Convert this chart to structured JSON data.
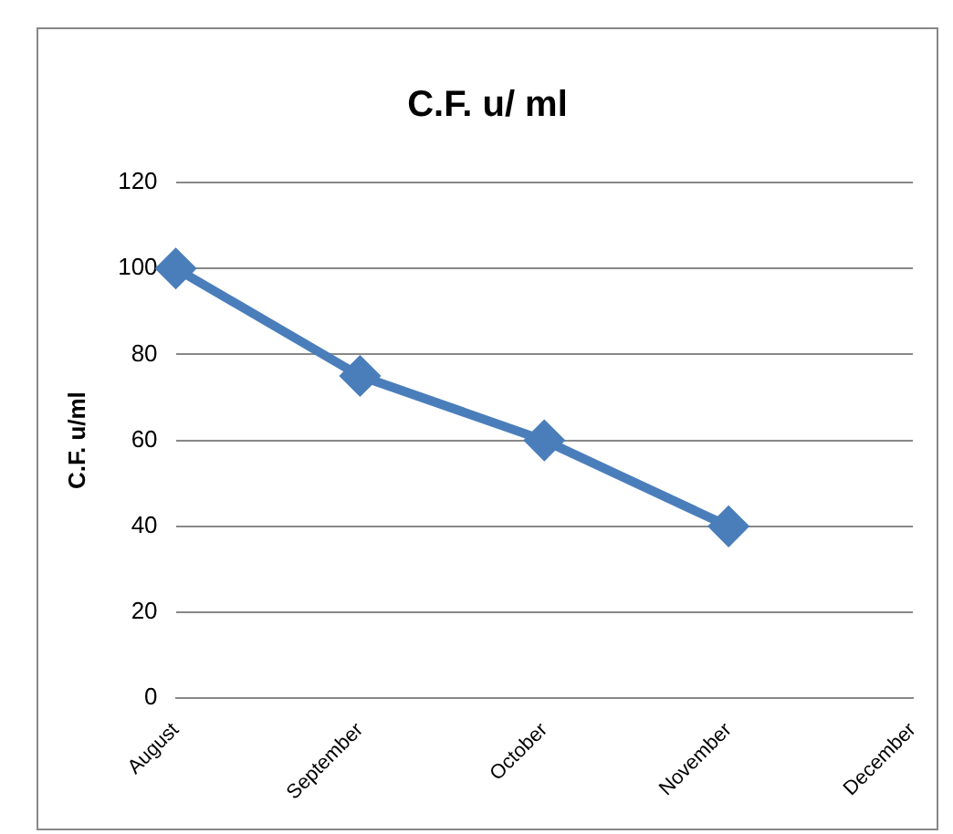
{
  "chart_data": {
    "type": "line",
    "title": "C.F. u/ ml",
    "ylabel": "C.F. u/ml",
    "categories": [
      "August",
      "September",
      "October",
      "November",
      "December"
    ],
    "series": [
      {
        "color": "#4a7ebb",
        "values": [
          100,
          75,
          60,
          40,
          null
        ]
      }
    ],
    "ylim": [
      0,
      120
    ],
    "yticks": [
      0,
      20,
      40,
      60,
      80,
      100,
      120
    ],
    "grid": "y",
    "legend": false,
    "marker": "diamond",
    "line_style": "solid"
  }
}
